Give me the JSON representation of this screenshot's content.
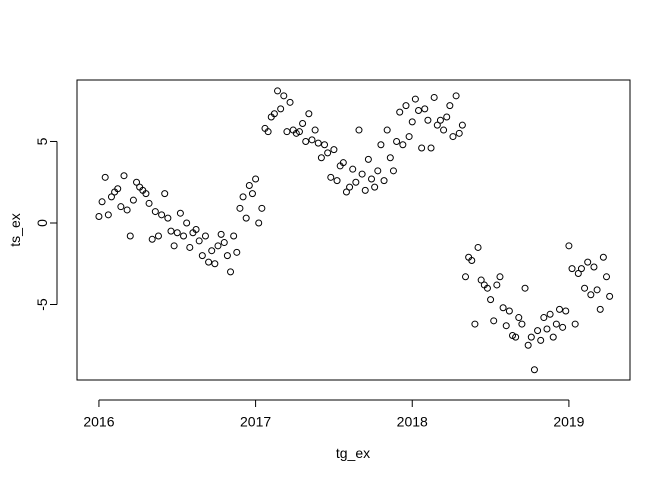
{
  "chart_data": {
    "type": "scatter",
    "x_label": "tg_ex",
    "y_label": "ts_ex",
    "xlim": [
      2015.86,
      2019.39
    ],
    "ylim": [
      -9.63,
      8.77
    ],
    "xticks": [
      2016,
      2017,
      2018,
      2019
    ],
    "yticks": [
      -5,
      0,
      5
    ],
    "color": "#000000",
    "x": [
      2016.0,
      2016.02,
      2016.04,
      2016.06,
      2016.08,
      2016.1,
      2016.12,
      2016.14,
      2016.16,
      2016.18,
      2016.2,
      2016.22,
      2016.24,
      2016.26,
      2016.28,
      2016.3,
      2016.32,
      2016.34,
      2016.36,
      2016.38,
      2016.4,
      2016.42,
      2016.44,
      2016.46,
      2016.48,
      2016.5,
      2016.52,
      2016.54,
      2016.56,
      2016.58,
      2016.6,
      2016.62,
      2016.64,
      2016.66,
      2016.68,
      2016.7,
      2016.72,
      2016.74,
      2016.76,
      2016.78,
      2016.8,
      2016.82,
      2016.84,
      2016.86,
      2016.88,
      2016.9,
      2016.92,
      2016.94,
      2016.96,
      2016.98,
      2017.0,
      2017.02,
      2017.04,
      2017.06,
      2017.08,
      2017.1,
      2017.12,
      2017.14,
      2017.16,
      2017.18,
      2017.2,
      2017.22,
      2017.24,
      2017.26,
      2017.28,
      2017.3,
      2017.32,
      2017.34,
      2017.36,
      2017.38,
      2017.4,
      2017.42,
      2017.44,
      2017.46,
      2017.48,
      2017.5,
      2017.52,
      2017.54,
      2017.56,
      2017.58,
      2017.6,
      2017.62,
      2017.64,
      2017.66,
      2017.68,
      2017.7,
      2017.72,
      2017.74,
      2017.76,
      2017.78,
      2017.8,
      2017.82,
      2017.84,
      2017.86,
      2017.88,
      2017.9,
      2017.92,
      2017.94,
      2017.96,
      2017.98,
      2018.0,
      2018.02,
      2018.04,
      2018.06,
      2018.08,
      2018.1,
      2018.12,
      2018.14,
      2018.16,
      2018.18,
      2018.2,
      2018.22,
      2018.24,
      2018.26,
      2018.28,
      2018.3,
      2018.32,
      2018.34,
      2018.36,
      2018.38,
      2018.4,
      2018.42,
      2018.44,
      2018.46,
      2018.48,
      2018.5,
      2018.52,
      2018.54,
      2018.56,
      2018.58,
      2018.6,
      2018.62,
      2018.64,
      2018.66,
      2018.68,
      2018.7,
      2018.72,
      2018.74,
      2018.76,
      2018.78,
      2018.8,
      2018.82,
      2018.84,
      2018.86,
      2018.88,
      2018.9,
      2018.92,
      2018.94,
      2018.96,
      2018.98,
      2019.0,
      2019.02,
      2019.04,
      2019.06,
      2019.08,
      2019.1,
      2019.12,
      2019.14,
      2019.16,
      2019.18,
      2019.2,
      2019.22,
      2019.24,
      2019.26
    ],
    "values": [
      0.4,
      1.3,
      2.8,
      0.5,
      1.6,
      1.9,
      2.1,
      1.0,
      2.9,
      0.8,
      -0.8,
      1.4,
      2.5,
      2.2,
      2.0,
      1.8,
      1.2,
      -1.0,
      0.7,
      -0.8,
      0.5,
      1.8,
      0.3,
      -0.5,
      -1.4,
      -0.6,
      0.6,
      -0.8,
      0.0,
      -1.5,
      -0.6,
      -0.4,
      -1.1,
      -2.0,
      -0.8,
      -2.4,
      -1.7,
      -2.5,
      -1.4,
      -0.7,
      -1.2,
      -2.0,
      -3.0,
      -0.8,
      -1.8,
      0.9,
      1.6,
      0.3,
      2.3,
      1.8,
      2.7,
      0.0,
      0.9,
      5.8,
      5.6,
      6.5,
      6.7,
      8.1,
      7.0,
      7.8,
      5.6,
      7.4,
      5.7,
      5.5,
      5.6,
      6.1,
      5.0,
      6.7,
      5.1,
      5.7,
      4.9,
      4.0,
      4.8,
      4.3,
      2.8,
      4.5,
      2.6,
      3.5,
      3.7,
      1.9,
      2.2,
      3.3,
      2.5,
      5.7,
      3.0,
      2.0,
      3.9,
      2.7,
      2.2,
      3.2,
      4.8,
      2.6,
      5.7,
      4.0,
      3.2,
      5.0,
      6.8,
      4.8,
      7.2,
      5.3,
      6.2,
      7.6,
      6.9,
      4.6,
      7.0,
      6.3,
      4.6,
      7.7,
      6.0,
      6.3,
      5.7,
      6.5,
      7.2,
      5.3,
      7.8,
      5.5,
      6.0,
      -3.3,
      -2.1,
      -2.3,
      -6.2,
      -1.5,
      -3.5,
      -3.8,
      -4.0,
      -4.7,
      -6.0,
      -3.8,
      -3.3,
      -5.2,
      -6.3,
      -5.4,
      -6.9,
      -7.0,
      -5.8,
      -6.2,
      -4.0,
      -7.5,
      -7.0,
      -9.0,
      -6.6,
      -7.2,
      -5.8,
      -6.5,
      -5.6,
      -7.0,
      -6.2,
      -5.3,
      -6.4,
      -5.4,
      -1.4,
      -2.8,
      -6.2,
      -3.1,
      -2.8,
      -4.0,
      -2.4,
      -4.4,
      -2.7,
      -4.1,
      -5.3,
      -2.1,
      -3.3,
      -4.5
    ]
  }
}
